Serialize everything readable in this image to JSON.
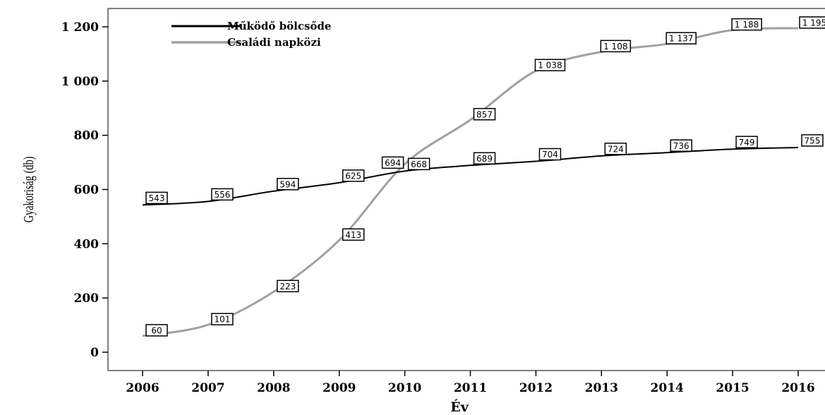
{
  "chart_data": {
    "type": "line",
    "xlabel": "Év",
    "ylabel": "Gyakoriság (db)",
    "x": [
      "2006",
      "2007",
      "2008",
      "2009",
      "2010",
      "2011",
      "2012",
      "2013",
      "2014",
      "2015",
      "2016"
    ],
    "ylim": [
      0,
      1250
    ],
    "yticks": [
      0,
      200,
      400,
      600,
      800,
      1000,
      1200
    ],
    "ytick_labels": [
      "0",
      "200",
      "400",
      "600",
      "800",
      "1 000",
      "1 200"
    ],
    "grid": false,
    "legend_position": "top-left",
    "series": [
      {
        "name": "Működő bölcsőde",
        "color": "#000000",
        "values": [
          543,
          556,
          594,
          625,
          668,
          689,
          704,
          724,
          736,
          749,
          755
        ],
        "labels": [
          "543",
          "556",
          "594",
          "625",
          "668",
          "689",
          "704",
          "724",
          "736",
          "749",
          "755"
        ]
      },
      {
        "name": "Családi napközi",
        "color": "#a0a0a0",
        "values": [
          60,
          101,
          223,
          413,
          694,
          857,
          1038,
          1108,
          1137,
          1188,
          1195
        ],
        "labels": [
          "60",
          "101",
          "223",
          "413",
          "694",
          "857",
          "1 038",
          "1 108",
          "1 137",
          "1 188",
          "1 195"
        ]
      }
    ]
  }
}
